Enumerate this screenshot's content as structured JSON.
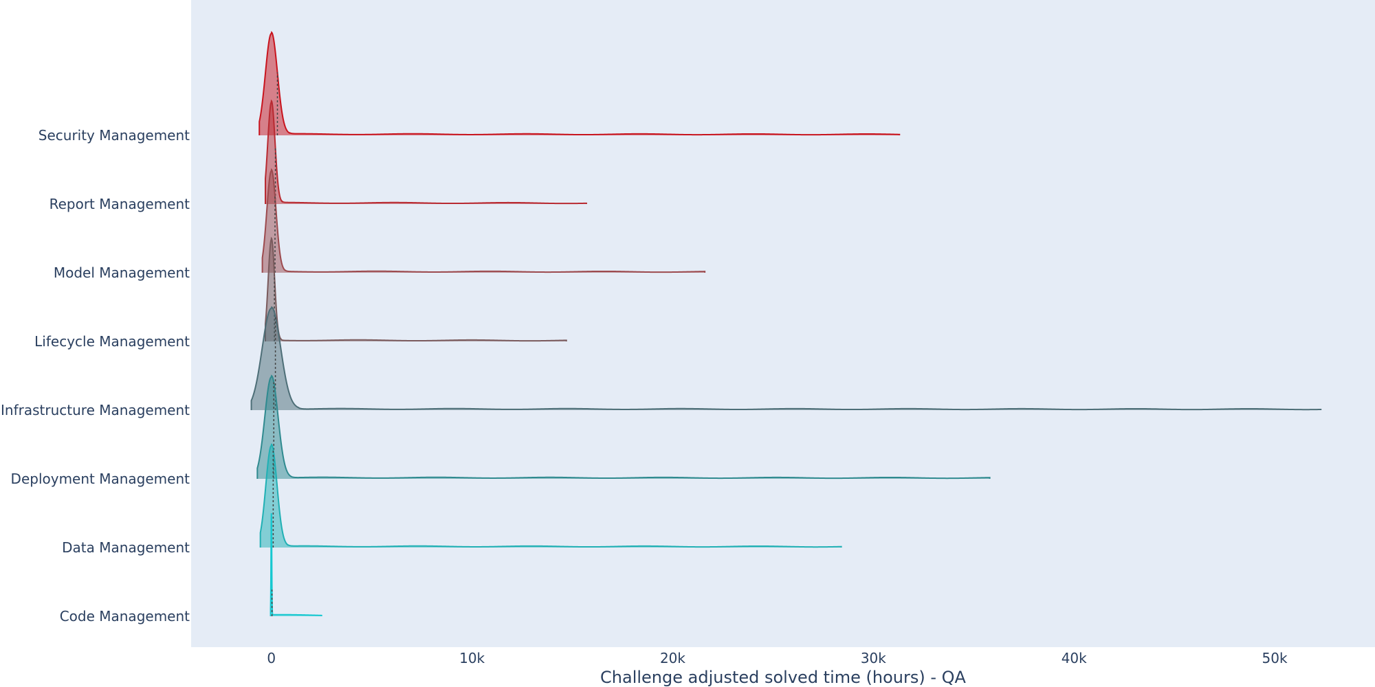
{
  "chart_data": {
    "type": "ridgeline",
    "title": "",
    "xlabel": "Challenge adjusted solved time (hours) - QA",
    "ylabel": "",
    "xlim": [
      -4000,
      55000
    ],
    "x_ticks": [
      0,
      10000,
      20000,
      30000,
      40000,
      50000
    ],
    "x_tick_labels": [
      "0",
      "10k",
      "20k",
      "30k",
      "40k",
      "50k"
    ],
    "grid": false,
    "legend": "none",
    "series": [
      {
        "name": "Security Management",
        "color": "#c8141e",
        "min": -600,
        "max": 31300,
        "peak_x": 0,
        "kde_sigma": 300,
        "median": 300
      },
      {
        "name": "Report Management",
        "color": "#b82a31",
        "min": -300,
        "max": 15700,
        "peak_x": 0,
        "kde_sigma": 180,
        "median": 200
      },
      {
        "name": "Model Management",
        "color": "#9c4a4e",
        "min": -450,
        "max": 21600,
        "peak_x": 0,
        "kde_sigma": 230,
        "median": 180
      },
      {
        "name": "Lifecycle Management",
        "color": "#7a5a5c",
        "min": -300,
        "max": 14700,
        "peak_x": 0,
        "kde_sigma": 160,
        "median": 150
      },
      {
        "name": "Infrastructure Management",
        "color": "#4d6e77",
        "min": -1000,
        "max": 52300,
        "peak_x": 0,
        "kde_sigma": 460,
        "median": 200
      },
      {
        "name": "Deployment Management",
        "color": "#2f8a8f",
        "min": -700,
        "max": 35800,
        "peak_x": 0,
        "kde_sigma": 330,
        "median": 120
      },
      {
        "name": "Data Management",
        "color": "#20b0b4",
        "min": -550,
        "max": 28400,
        "peak_x": 0,
        "kde_sigma": 280,
        "median": 90
      },
      {
        "name": "Code Management",
        "color": "#17c8d0",
        "min": -40,
        "max": 2500,
        "peak_x": 0,
        "kde_sigma": 18,
        "median": 30
      }
    ]
  }
}
